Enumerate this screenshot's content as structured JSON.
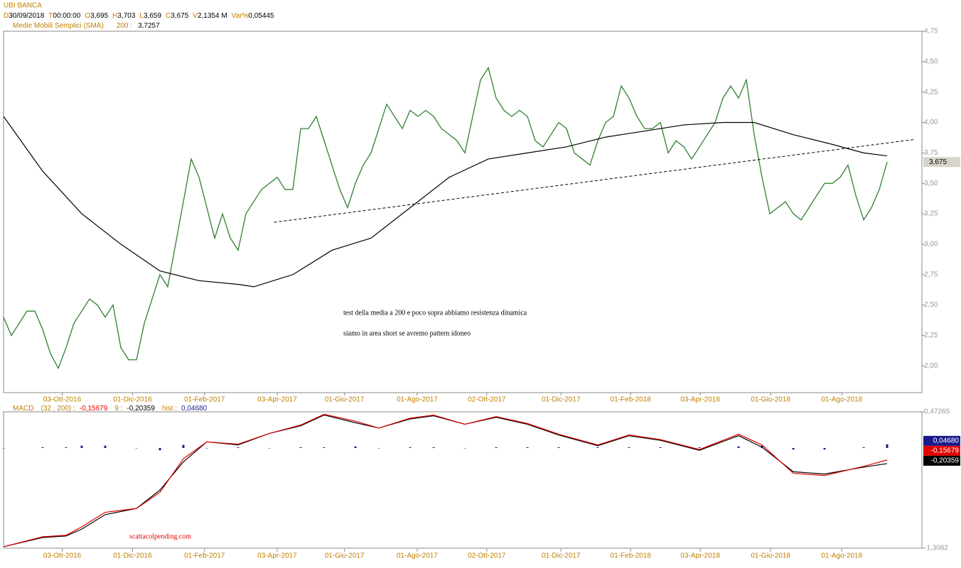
{
  "header": {
    "fields": [
      {
        "label": "D",
        "value": "30/09/2018"
      },
      {
        "label": "T",
        "value": "00:00:00"
      },
      {
        "label": "O",
        "value": "3,695"
      },
      {
        "label": "H",
        "value": "3,703"
      },
      {
        "label": "L",
        "value": "3,659"
      },
      {
        "label": "C",
        "value": "3,675"
      },
      {
        "label": "V",
        "value": "2,1354 M"
      },
      {
        "label": "Var%",
        "value": "0,05445"
      }
    ]
  },
  "chart_data": [
    {
      "type": "line",
      "title": "UBI BANCA",
      "xlim": [
        0,
        117.45
      ],
      "xticks": [
        {
          "value": 7.5,
          "label": "03-Ott-2016"
        },
        {
          "value": 16.5,
          "label": "01-Dic-2016"
        },
        {
          "value": 25.7,
          "label": "01-Feb-2017"
        },
        {
          "value": 35,
          "label": "03-Apr-2017"
        },
        {
          "value": 43.6,
          "label": "01-Giu-2017"
        },
        {
          "value": 52.9,
          "label": "01-Ago-2017"
        },
        {
          "value": 61.8,
          "label": "02-Ott-2017"
        },
        {
          "value": 71.3,
          "label": "01-Dic-2017"
        },
        {
          "value": 80.2,
          "label": "01-Feb-2018"
        },
        {
          "value": 89.1,
          "label": "03-Apr-2018"
        },
        {
          "value": 98.1,
          "label": "01-Giu-2018"
        },
        {
          "value": 107.2,
          "label": "01-Ago-2018"
        }
      ],
      "ylim": [
        1.78,
        4.75
      ],
      "yticks": [
        {
          "value": 2.0,
          "label": "2,00"
        },
        {
          "value": 2.25,
          "label": "2,25"
        },
        {
          "value": 2.5,
          "label": "2,50"
        },
        {
          "value": 2.75,
          "label": "2,75"
        },
        {
          "value": 3.0,
          "label": "3,00"
        },
        {
          "value": 3.25,
          "label": "3,25"
        },
        {
          "value": 3.5,
          "label": "3,50"
        },
        {
          "value": 3.75,
          "label": "3,75"
        },
        {
          "value": 4.0,
          "label": "4,00"
        },
        {
          "value": 4.25,
          "label": "4,25"
        },
        {
          "value": 4.5,
          "label": "4,50"
        },
        {
          "value": 4.75,
          "label": "4,75"
        }
      ],
      "series": [
        {
          "color": "#2f7f2f",
          "values": [
            2.4,
            2.25,
            2.35,
            2.45,
            2.45,
            2.3,
            2.1,
            1.98,
            2.15,
            2.35,
            2.45,
            2.55,
            2.5,
            2.4,
            2.5,
            2.15,
            2.05,
            2.05,
            2.35,
            2.55,
            2.75,
            2.65,
            3.0,
            3.35,
            3.7,
            3.55,
            3.3,
            3.05,
            3.25,
            3.05,
            2.95,
            3.25,
            3.35,
            3.45,
            3.5,
            3.55,
            3.45,
            3.45,
            3.95,
            3.95,
            4.05,
            3.85,
            3.65,
            3.45,
            3.3,
            3.5,
            3.65,
            3.75,
            3.95,
            4.15,
            4.05,
            3.95,
            4.1,
            4.05,
            4.1,
            4.05,
            3.95,
            3.9,
            3.85,
            3.75,
            4.05,
            4.35,
            4.45,
            4.2,
            4.1,
            4.05,
            4.1,
            4.05,
            3.85,
            3.8,
            3.9,
            4.0,
            3.95,
            3.75,
            3.7,
            3.65,
            3.85,
            4.0,
            4.05,
            4.3,
            4.2,
            4.05,
            3.95,
            3.95,
            4.0,
            3.75,
            3.85,
            3.8,
            3.7,
            3.8,
            3.9,
            4.0,
            4.2,
            4.3,
            4.2,
            4.35,
            3.9,
            3.55,
            3.25,
            3.3,
            3.35,
            3.25,
            3.2,
            3.3,
            3.4,
            3.5,
            3.5,
            3.55,
            3.65,
            3.4,
            3.2,
            3.3,
            3.45,
            3.675
          ],
          "last_label": "3,675"
        },
        {
          "name": "Medie Mobili Semplici (SMA)",
          "period": "200 :",
          "last_label": "3,7257",
          "color": "#000000",
          "x": [
            0,
            5,
            10,
            15,
            20,
            25,
            30,
            32,
            37,
            42,
            47,
            52,
            57,
            62,
            67,
            72,
            77,
            82,
            87,
            92,
            96,
            101,
            106,
            110,
            113
          ],
          "values": [
            4.05,
            3.6,
            3.25,
            3.0,
            2.78,
            2.7,
            2.67,
            2.65,
            2.75,
            2.95,
            3.05,
            3.3,
            3.55,
            3.7,
            3.75,
            3.8,
            3.88,
            3.93,
            3.98,
            4.0,
            4.0,
            3.9,
            3.82,
            3.75,
            3.7257
          ]
        }
      ],
      "trendline": {
        "x": [
          34.6,
          116.4
        ],
        "values": [
          3.18,
          3.86
        ],
        "color": "#000000"
      },
      "annotations": [
        "test della media a 200 e poco sopra abbiamo resistenza dinamica",
        "siamo in area short se avremo pattern idoneo"
      ]
    },
    {
      "type": "macd",
      "title": "MACD",
      "watermark": "scattacolpending.com",
      "ylim": [
        -1.3082,
        0.47265
      ],
      "yticks": [
        {
          "value": -1.3082,
          "label": "-1,3082"
        },
        {
          "value": 0.47265,
          "label": "0,47265"
        }
      ],
      "x": [
        0,
        5,
        8,
        10,
        13,
        17,
        20,
        23,
        26,
        30,
        34,
        38,
        41,
        45,
        48,
        52,
        55,
        59,
        63,
        67,
        71,
        76,
        80,
        84,
        89,
        94,
        97,
        101,
        105,
        110,
        113
      ],
      "series": [
        {
          "name": "(32 , 200) :",
          "color": "#e00000",
          "last_label": "-0,15679",
          "values": [
            -1.29,
            -1.16,
            -1.14,
            -1.03,
            -0.84,
            -0.79,
            -0.58,
            -0.14,
            0.08,
            0.05,
            0.19,
            0.3,
            0.44,
            0.35,
            0.26,
            0.39,
            0.43,
            0.31,
            0.41,
            0.32,
            0.18,
            0.04,
            0.17,
            0.11,
            -0.02,
            0.18,
            0.04,
            -0.33,
            -0.36,
            -0.24,
            -0.15679
          ]
        },
        {
          "name": "9 :",
          "color": "#000000",
          "last_label": "-0,20359",
          "values": [
            -1.29,
            -1.17,
            -1.15,
            -1.06,
            -0.87,
            -0.79,
            -0.55,
            -0.18,
            0.08,
            0.04,
            0.19,
            0.29,
            0.43,
            0.33,
            0.26,
            0.38,
            0.42,
            0.31,
            0.4,
            0.31,
            0.17,
            0.03,
            0.16,
            0.1,
            -0.03,
            0.16,
            0.01,
            -0.31,
            -0.34,
            -0.25,
            -0.20359
          ]
        },
        {
          "name": "hist :",
          "color": "#1a1a8c",
          "last_label": "0,04680",
          "values": [
            0.0,
            0.01,
            0.01,
            0.03,
            0.03,
            0.0,
            -0.03,
            0.04,
            0.0,
            0.01,
            0.0,
            0.01,
            0.01,
            0.02,
            0.0,
            0.01,
            0.01,
            0.0,
            0.01,
            0.01,
            0.01,
            0.01,
            0.01,
            0.01,
            0.01,
            0.02,
            0.03,
            -0.02,
            -0.02,
            0.01,
            0.0468
          ]
        }
      ]
    }
  ]
}
